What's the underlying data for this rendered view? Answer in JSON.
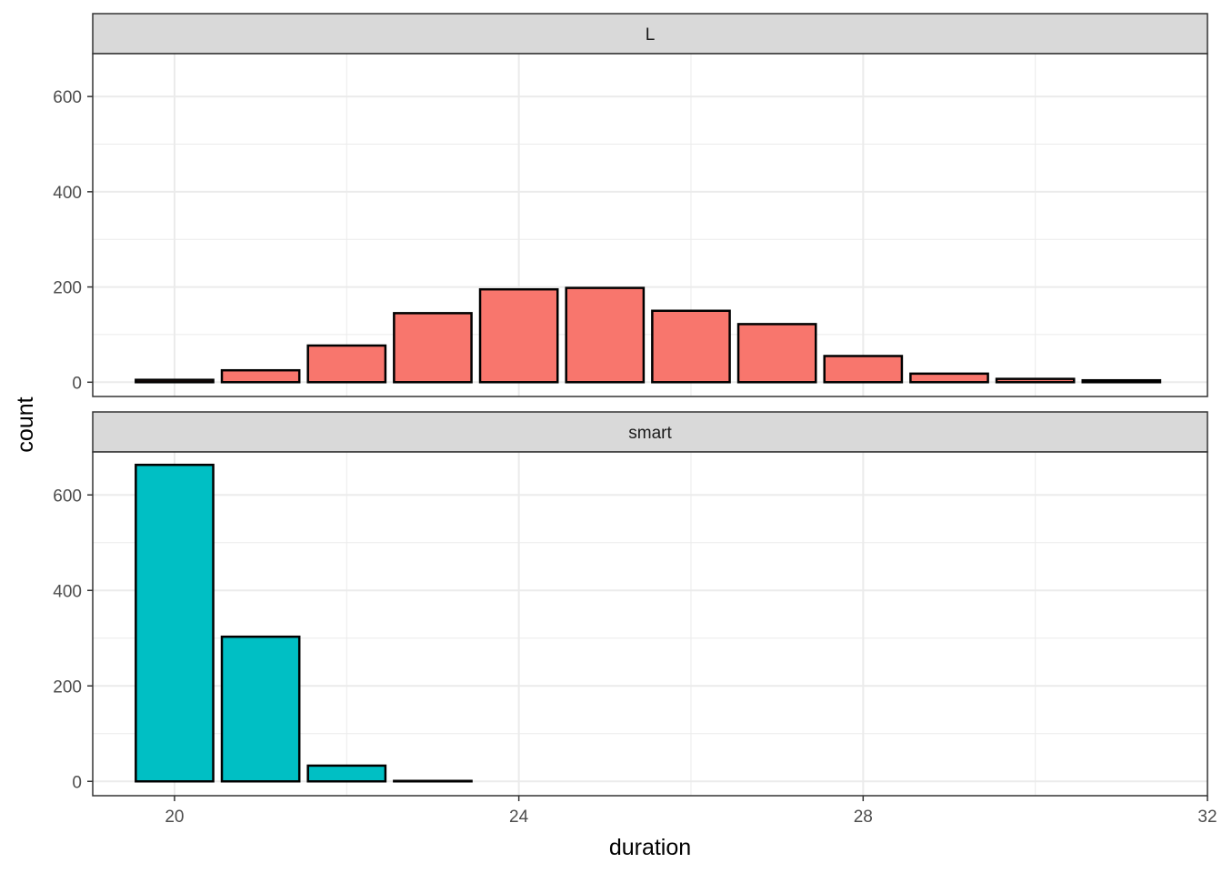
{
  "chart_data": {
    "type": "bar",
    "facet_layout": "vertical",
    "xlabel": "duration",
    "ylabel": "count",
    "xlim": [
      19.05,
      32.0
    ],
    "x_ticks": [
      20,
      24,
      28,
      32
    ],
    "ylim": [
      -30,
      690
    ],
    "y_ticks": [
      0,
      200,
      400,
      600
    ],
    "grid": true,
    "legend": "none",
    "bar_width": 0.9,
    "panels": [
      {
        "label": "L",
        "fill": "#F8766D",
        "outline": "#000000",
        "x": [
          20,
          21,
          22,
          23,
          24,
          25,
          26,
          27,
          28,
          29,
          30,
          31
        ],
        "values": [
          5,
          25,
          77,
          145,
          195,
          198,
          150,
          122,
          55,
          18,
          7,
          4
        ]
      },
      {
        "label": "smart",
        "fill": "#00BFC4",
        "outline": "#000000",
        "x": [
          20,
          21,
          22,
          23
        ],
        "values": [
          663,
          303,
          33,
          1
        ]
      }
    ]
  }
}
